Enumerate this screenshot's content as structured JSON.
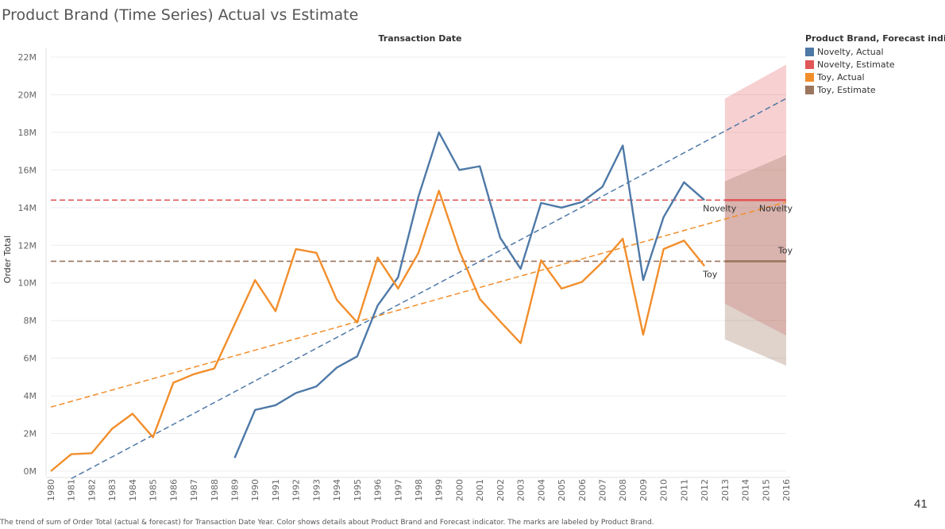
{
  "page_title": "Product Brand (Time Series) Actual vs Estimate",
  "page_number": "41",
  "caption": "The trend of sum of Order Total (actual & forecast) for Transaction Date Year. Color shows details about Product Brand and Forecast indicator. The marks are labeled by Product Brand.",
  "legend": {
    "title": "Product Brand, Forecast indicator",
    "items": [
      {
        "label": "Novelty, Actual",
        "color": "#4e79a7"
      },
      {
        "label": "Novelty, Estimate",
        "color": "#e15759"
      },
      {
        "label": "Toy, Actual",
        "color": "#f28e2b"
      },
      {
        "label": "Toy, Estimate",
        "color": "#9c755f"
      }
    ]
  },
  "chart_data": {
    "type": "line",
    "title": "Product Brand (Time Series) Actual vs Estimate",
    "xlabel": "Transaction Date",
    "ylabel": "Order Total",
    "x": [
      1980,
      1981,
      1982,
      1983,
      1984,
      1985,
      1986,
      1987,
      1988,
      1989,
      1990,
      1991,
      1992,
      1993,
      1994,
      1995,
      1996,
      1997,
      1998,
      1999,
      2000,
      2001,
      2002,
      2003,
      2004,
      2005,
      2006,
      2007,
      2008,
      2009,
      2010,
      2011,
      2012,
      2013,
      2014,
      2015,
      2016
    ],
    "xlim": [
      1980,
      2016
    ],
    "ylim": [
      0,
      22000000
    ],
    "y_ticks": [
      0,
      2000000,
      4000000,
      6000000,
      8000000,
      10000000,
      12000000,
      14000000,
      16000000,
      18000000,
      20000000,
      22000000
    ],
    "y_tick_labels": [
      "0M",
      "2M",
      "4M",
      "6M",
      "8M",
      "10M",
      "12M",
      "14M",
      "16M",
      "18M",
      "20M",
      "22M"
    ],
    "grid": "horizontal",
    "legend_position": "top-right",
    "series": [
      {
        "name": "Novelty, Actual",
        "color": "#4e79a7",
        "points": [
          [
            1989,
            0.7
          ],
          [
            1990,
            3.25
          ],
          [
            1991,
            3.5
          ],
          [
            1992,
            4.15
          ],
          [
            1993,
            4.5
          ],
          [
            1994,
            5.5
          ],
          [
            1995,
            6.1
          ],
          [
            1996,
            8.8
          ],
          [
            1997,
            10.3
          ],
          [
            1998,
            14.6
          ],
          [
            1999,
            18.0
          ],
          [
            2000,
            16.0
          ],
          [
            2001,
            16.2
          ],
          [
            2002,
            12.4
          ],
          [
            2003,
            10.75
          ],
          [
            2004,
            14.25
          ],
          [
            2005,
            14.0
          ],
          [
            2006,
            14.3
          ],
          [
            2007,
            15.1
          ],
          [
            2008,
            17.3
          ],
          [
            2009,
            10.15
          ],
          [
            2010,
            13.5
          ],
          [
            2011,
            15.35
          ],
          [
            2012,
            14.4
          ]
        ],
        "end_label": "Novelty",
        "end_label_x": 2012
      },
      {
        "name": "Toy, Actual",
        "color": "#f28e2b",
        "points": [
          [
            1980,
            0.0
          ],
          [
            1981,
            0.9
          ],
          [
            1982,
            0.95
          ],
          [
            1983,
            2.25
          ],
          [
            1984,
            3.05
          ],
          [
            1985,
            1.8
          ],
          [
            1986,
            4.7
          ],
          [
            1987,
            5.15
          ],
          [
            1988,
            5.45
          ],
          [
            1989,
            7.8
          ],
          [
            1990,
            10.15
          ],
          [
            1991,
            8.5
          ],
          [
            1992,
            11.8
          ],
          [
            1993,
            11.6
          ],
          [
            1994,
            9.1
          ],
          [
            1995,
            7.9
          ],
          [
            1996,
            11.35
          ],
          [
            1997,
            9.7
          ],
          [
            1998,
            11.6
          ],
          [
            1999,
            14.9
          ],
          [
            2000,
            11.7
          ],
          [
            2001,
            9.15
          ],
          [
            2002,
            7.95
          ],
          [
            2003,
            6.8
          ],
          [
            2004,
            11.2
          ],
          [
            2005,
            9.7
          ],
          [
            2006,
            10.05
          ],
          [
            2007,
            11.1
          ],
          [
            2008,
            12.35
          ],
          [
            2009,
            7.25
          ],
          [
            2010,
            11.8
          ],
          [
            2011,
            12.25
          ],
          [
            2012,
            10.9
          ]
        ],
        "end_label": "Toy",
        "end_label_x": 2012
      },
      {
        "name": "Novelty, Estimate",
        "color": "#e15759",
        "points": [
          [
            2013,
            14.4
          ],
          [
            2014,
            14.4
          ],
          [
            2015,
            14.4
          ],
          [
            2016,
            14.4
          ]
        ],
        "band_upper": [
          [
            2013,
            19.8
          ],
          [
            2016,
            21.6
          ]
        ],
        "band_lower": [
          [
            2013,
            8.9
          ],
          [
            2016,
            7.2
          ]
        ],
        "end_label": "Novelty",
        "end_label_x": 2016
      },
      {
        "name": "Toy, Estimate",
        "color": "#9c755f",
        "points": [
          [
            2013,
            11.15
          ],
          [
            2014,
            11.15
          ],
          [
            2015,
            11.15
          ],
          [
            2016,
            11.15
          ]
        ],
        "band_upper": [
          [
            2013,
            15.4
          ],
          [
            2016,
            16.8
          ]
        ],
        "band_lower": [
          [
            2013,
            7.0
          ],
          [
            2016,
            5.6
          ]
        ],
        "end_label": "Toy",
        "end_label_x": 2016
      }
    ],
    "reference_lines": [
      {
        "name": "Novelty average",
        "color": "#e15759",
        "style": "dashed",
        "y": 14.4,
        "x_range": [
          1980,
          2016
        ]
      },
      {
        "name": "Toy average",
        "color": "#9c755f",
        "style": "dashed",
        "y": 11.15,
        "x_range": [
          1980,
          2016
        ]
      }
    ],
    "trend_lines": [
      {
        "name": "Novelty trend",
        "color": "#4e79a7",
        "style": "dashed",
        "from": [
          1981,
          -0.4
        ],
        "to": [
          2016,
          19.8
        ]
      },
      {
        "name": "Toy trend",
        "color": "#f28e2b",
        "style": "dashed",
        "from": [
          1980,
          3.4
        ],
        "to": [
          2016,
          14.3
        ]
      }
    ],
    "value_units": "millions"
  }
}
